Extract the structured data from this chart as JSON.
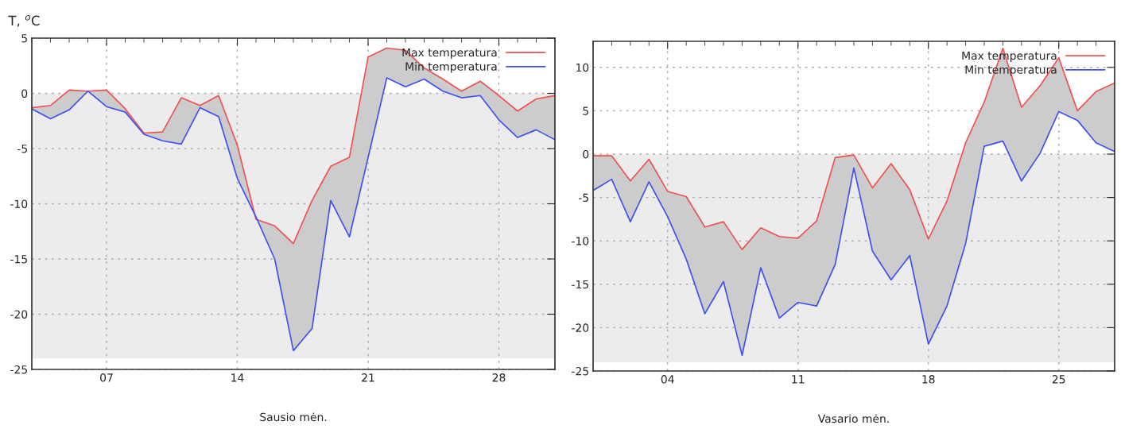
{
  "chart_data": [
    {
      "type": "line",
      "ylabel": "T, $^{o}$C",
      "xlabel": "Sausio mėn.",
      "x": [
        3,
        4,
        5,
        6,
        7,
        8,
        9,
        10,
        11,
        12,
        13,
        14,
        15,
        16,
        17,
        18,
        19,
        20,
        21,
        22,
        23,
        24,
        25,
        26,
        27,
        28,
        29,
        30,
        31
      ],
      "series": [
        {
          "name": "Max temperatura",
          "color": "#f05050",
          "values": [
            -1.3,
            -1.1,
            0.3,
            0.2,
            0.3,
            -1.4,
            -3.6,
            -3.5,
            -0.4,
            -1.1,
            -0.2,
            -4.7,
            -11.4,
            -12.0,
            -13.6,
            -9.7,
            -6.6,
            -5.8,
            3.3,
            4.1,
            3.9,
            2.3,
            1.3,
            0.2,
            1.1,
            -0.2,
            -1.6,
            -0.5,
            -0.2
          ],
          "upper": [
            -1.3,
            -1.1,
            0.3,
            0.2,
            0.3,
            -1.4,
            -3.6,
            -3.5,
            -0.4,
            -1.1,
            -0.2,
            -4.7,
            -11.4,
            -12.0,
            -13.6,
            -9.7,
            -6.6,
            -5.8,
            3.3,
            4.1,
            3.9,
            2.3,
            1.3,
            0.2,
            1.1,
            -0.2,
            -1.6,
            -0.5,
            -0.2
          ],
          "lower": [
            -1.4,
            -2.3,
            -1.5,
            0.2,
            -1.2,
            -1.7,
            -3.7,
            -4.3,
            -4.6,
            -1.3,
            -2.1,
            -7.7,
            -11.2,
            -15.0,
            -23.3,
            -21.3,
            -9.7,
            -13.0,
            -5.8,
            1.4,
            0.6,
            1.3,
            0.2,
            -0.4,
            -0.2,
            -2.4,
            -4.0,
            -3.3,
            -4.2
          ]
        },
        {
          "name": "Min temperatura",
          "color": "#4050f0",
          "values": [
            -1.4,
            -2.3,
            -1.5,
            0.2,
            -1.2,
            -1.7,
            -3.7,
            -4.3,
            -4.6,
            -1.3,
            -2.1,
            -7.7,
            -11.2,
            -15.0,
            -23.3,
            -21.3,
            -9.7,
            -13.0,
            -5.8,
            1.4,
            0.6,
            1.3,
            0.2,
            -0.4,
            -0.2,
            -2.4,
            -4.0,
            -3.3,
            -4.2
          ]
        }
      ],
      "xlim": [
        3,
        31
      ],
      "xticks": [
        {
          "value": 7,
          "label": "07"
        },
        {
          "value": 14,
          "label": "14"
        },
        {
          "value": 21,
          "label": "21"
        },
        {
          "value": 28,
          "label": "28"
        }
      ],
      "ylim": [
        -25,
        5
      ],
      "yticks": [
        -25,
        -20,
        -15,
        -10,
        -5,
        0,
        5
      ],
      "bands": [
        {
          "axis": "y",
          "from": -24,
          "to": 0,
          "color": "#ececec"
        }
      ],
      "grid": true,
      "legend": "top right"
    },
    {
      "type": "line",
      "xlabel": "Vasario mėn.",
      "x": [
        0,
        1,
        2,
        3,
        4,
        5,
        6,
        7,
        8,
        9,
        10,
        11,
        12,
        13,
        14,
        15,
        16,
        17,
        18,
        19,
        20,
        21,
        22,
        23,
        24,
        25,
        26,
        27,
        28
      ],
      "series": [
        {
          "name": "Max temperatura",
          "color": "#f05050",
          "values": [
            -0.2,
            -0.2,
            -3.1,
            -0.6,
            -4.3,
            -4.9,
            -8.4,
            -7.8,
            -11.0,
            -8.5,
            -9.5,
            -9.7,
            -7.7,
            -0.4,
            -0.1,
            -3.9,
            -1.1,
            -4.1,
            -9.8,
            -5.4,
            1.3,
            6.0,
            12.2,
            5.4,
            7.9,
            11.1,
            5.0,
            7.2,
            8.2
          ],
          "upper": [
            -0.2,
            -0.2,
            -3.1,
            -0.6,
            -4.3,
            -4.9,
            -8.4,
            -7.8,
            -11.0,
            -8.5,
            -9.5,
            -9.7,
            -7.7,
            -0.4,
            -0.1,
            -3.9,
            -1.1,
            -4.1,
            -9.8,
            -5.4,
            1.3,
            6.0,
            12.2,
            5.4,
            7.9,
            11.1,
            5.0,
            7.2,
            8.2
          ],
          "lower": [
            -4.2,
            -2.9,
            -7.8,
            -3.2,
            -7.2,
            -12.1,
            -18.4,
            -14.7,
            -23.2,
            -13.1,
            -18.9,
            -17.1,
            -17.5,
            -12.7,
            -1.6,
            -11.2,
            -14.5,
            -11.7,
            -21.9,
            -17.5,
            -10.3,
            0.9,
            1.5,
            -3.1,
            0.1,
            4.9,
            3.9,
            1.3,
            0.3
          ]
        },
        {
          "name": "Min temperatura",
          "color": "#4050f0",
          "values": [
            -4.2,
            -2.9,
            -7.8,
            -3.2,
            -7.2,
            -12.1,
            -18.4,
            -14.7,
            -23.2,
            -13.1,
            -18.9,
            -17.1,
            -17.5,
            -12.7,
            -1.6,
            -11.2,
            -14.5,
            -11.7,
            -21.9,
            -17.5,
            -10.3,
            0.9,
            1.5,
            -3.1,
            0.1,
            4.9,
            3.9,
            1.3,
            0.3
          ]
        }
      ],
      "xlim": [
        0,
        28
      ],
      "xticks": [
        {
          "value": 4,
          "label": "04"
        },
        {
          "value": 11,
          "label": "11"
        },
        {
          "value": 18,
          "label": "18"
        },
        {
          "value": 25,
          "label": "25"
        }
      ],
      "ylim": [
        -25,
        13
      ],
      "yticks": [
        -25,
        -20,
        -15,
        -10,
        -5,
        0,
        5,
        10
      ],
      "bands": [
        {
          "axis": "y",
          "from": -24,
          "to": 0,
          "color": "#ececec"
        }
      ],
      "grid": true,
      "legend": "top right"
    }
  ]
}
